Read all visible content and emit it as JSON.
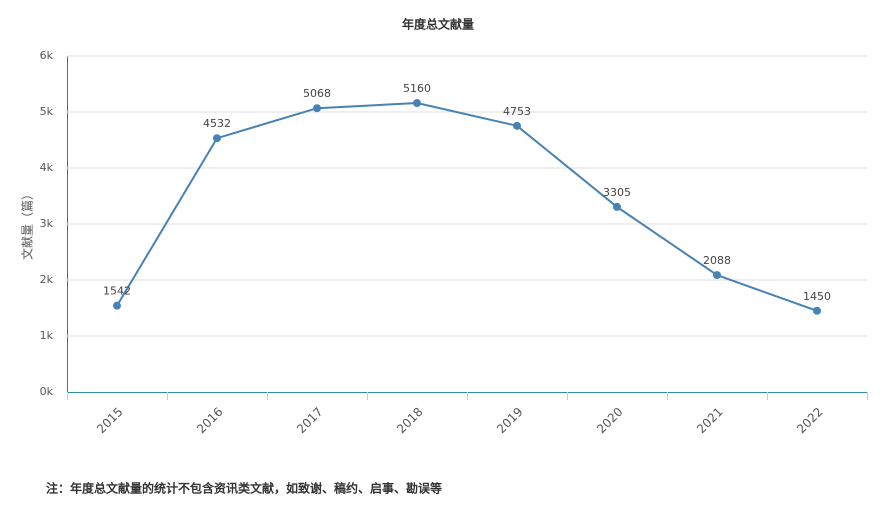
{
  "chart_data": {
    "type": "line",
    "title": "年度总文献量",
    "y_label": "文献量（篇）",
    "note": "注：年度总文献量的统计不包含资讯类文献，如致谢、稿约、启事、勘误等",
    "categories": [
      "2015",
      "2016",
      "2017",
      "2018",
      "2019",
      "2020",
      "2021",
      "2022"
    ],
    "values": [
      1542,
      4532,
      5068,
      5160,
      4753,
      3305,
      2088,
      1450
    ],
    "color": "#4682b4",
    "ylim": [
      0,
      6000
    ],
    "yticks": [
      {
        "value": 0,
        "label": "0k"
      },
      {
        "value": 1000,
        "label": "1k"
      },
      {
        "value": 2000,
        "label": "2k"
      },
      {
        "value": 3000,
        "label": "3k"
      },
      {
        "value": 4000,
        "label": "4k"
      },
      {
        "value": 5000,
        "label": "5k"
      },
      {
        "value": 6000,
        "label": "6k"
      }
    ],
    "grid": true
  }
}
